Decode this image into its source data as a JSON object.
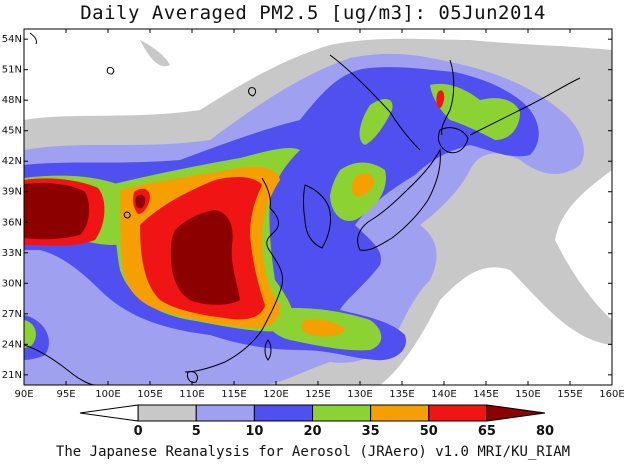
{
  "title": "Daily Averaged PM2.5 [ug/m3]: 05Jun2014",
  "credit": "The Japanese Reanalysis for Aerosol (JRAero) v1.0 MRI/KU_RIAM",
  "map": {
    "lon_range": [
      90,
      160
    ],
    "lat_range": [
      20,
      55
    ],
    "x_ticks": [
      "90E",
      "95E",
      "100E",
      "105E",
      "110E",
      "115E",
      "120E",
      "125E",
      "130E",
      "135E",
      "140E",
      "145E",
      "150E",
      "155E",
      "160E"
    ],
    "y_ticks": [
      "21N",
      "24N",
      "27N",
      "30N",
      "33N",
      "36N",
      "39N",
      "42N",
      "45N",
      "48N",
      "51N",
      "54N"
    ]
  },
  "colorbar": {
    "labels": [
      "0",
      "5",
      "10",
      "20",
      "35",
      "50",
      "65",
      "80"
    ],
    "colors": [
      "#ffffff",
      "#c8c8c8",
      "#a0a0f0",
      "#5050f0",
      "#8cd232",
      "#f5a000",
      "#f01414",
      "#8c0000"
    ]
  }
}
